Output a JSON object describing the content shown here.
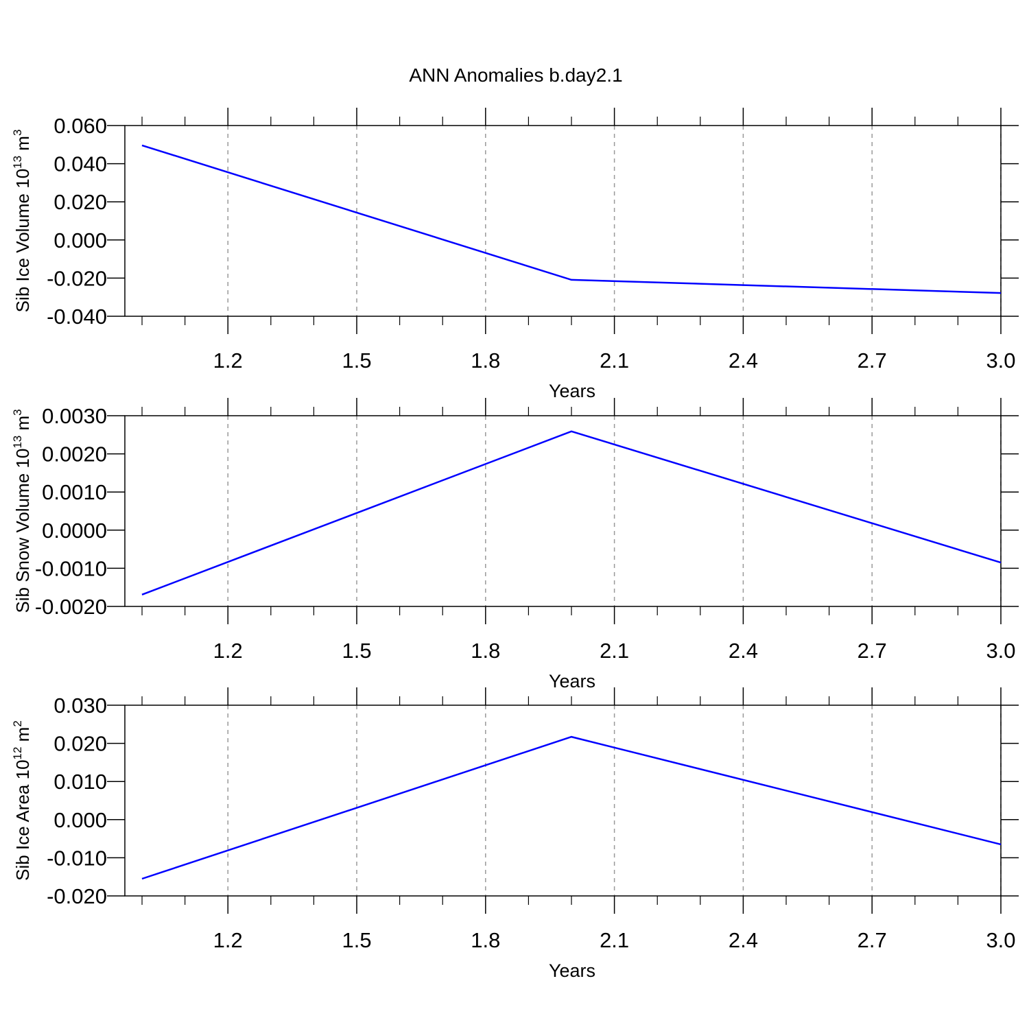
{
  "chart_data": [
    {
      "type": "line",
      "title": "ANN Anomalies b.day2.1",
      "ylabel": [
        "Sib Ice Volume 10",
        "13",
        " m",
        "3"
      ],
      "xlabel": "Years",
      "x": [
        1,
        2,
        3
      ],
      "values": [
        0.0496,
        -0.0209,
        -0.0278
      ],
      "color": "#0000ff",
      "xlim": [
        0.96,
        3.0
      ],
      "xticks": [
        1.2,
        1.5,
        1.8,
        2.1,
        2.4,
        2.7,
        {
          "value": 3,
          "label": "3.0"
        }
      ],
      "xminorticks": [
        1,
        1.1,
        1.3,
        1.4,
        1.6,
        1.7,
        1.9,
        2,
        2.2,
        2.3,
        2.5,
        2.6,
        2.8,
        2.9
      ],
      "ylim": [
        -0.04,
        0.06
      ],
      "yticks": [
        {
          "value": 0.06,
          "label": "0.060"
        },
        {
          "value": 0.04,
          "label": "0.040"
        },
        {
          "value": 0.02,
          "label": "0.020"
        },
        {
          "value": 0,
          "label": "0.000"
        },
        {
          "value": -0.02,
          "label": "-0.020"
        },
        {
          "value": -0.04,
          "label": "-0.040"
        }
      ],
      "grid": "x"
    },
    {
      "type": "line",
      "ylabel": [
        "Sib Snow Volume 10",
        "13",
        " m",
        "3"
      ],
      "xlabel": "Years",
      "x": [
        1,
        2,
        3
      ],
      "values": [
        -0.00169,
        0.00259,
        -0.00085
      ],
      "color": "#0000ff",
      "xlim": [
        0.96,
        3.0
      ],
      "xticks": [
        1.2,
        1.5,
        1.8,
        2.1,
        2.4,
        2.7,
        {
          "value": 3,
          "label": "3.0"
        }
      ],
      "xminorticks": [
        1,
        1.1,
        1.3,
        1.4,
        1.6,
        1.7,
        1.9,
        2,
        2.2,
        2.3,
        2.5,
        2.6,
        2.8,
        2.9
      ],
      "ylim": [
        -0.002,
        0.003
      ],
      "yticks": [
        {
          "value": 0.003,
          "label": "0.0030"
        },
        {
          "value": 0.002,
          "label": "0.0020"
        },
        {
          "value": 0.001,
          "label": "0.0010"
        },
        {
          "value": 0,
          "label": "0.0000"
        },
        {
          "value": -0.001,
          "label": "-0.0010"
        },
        {
          "value": -0.002,
          "label": "-0.0020"
        }
      ],
      "grid": "x"
    },
    {
      "type": "line",
      "ylabel": [
        "Sib Ice Area 10",
        "12",
        " m",
        "2"
      ],
      "xlabel": "Years",
      "x": [
        1,
        2,
        3
      ],
      "values": [
        -0.0155,
        0.0217,
        -0.0065
      ],
      "color": "#0000ff",
      "xlim": [
        0.96,
        3.0
      ],
      "xticks": [
        1.2,
        1.5,
        1.8,
        2.1,
        2.4,
        2.7,
        {
          "value": 3,
          "label": "3.0"
        }
      ],
      "xminorticks": [
        1,
        1.1,
        1.3,
        1.4,
        1.6,
        1.7,
        1.9,
        2,
        2.2,
        2.3,
        2.5,
        2.6,
        2.8,
        2.9
      ],
      "ylim": [
        -0.02,
        0.03
      ],
      "yticks": [
        {
          "value": 0.03,
          "label": "0.030"
        },
        {
          "value": 0.02,
          "label": "0.020"
        },
        {
          "value": 0.01,
          "label": "0.010"
        },
        {
          "value": 0,
          "label": "0.000"
        },
        {
          "value": -0.01,
          "label": "-0.010"
        },
        {
          "value": -0.02,
          "label": "-0.020"
        }
      ],
      "grid": "x"
    }
  ]
}
